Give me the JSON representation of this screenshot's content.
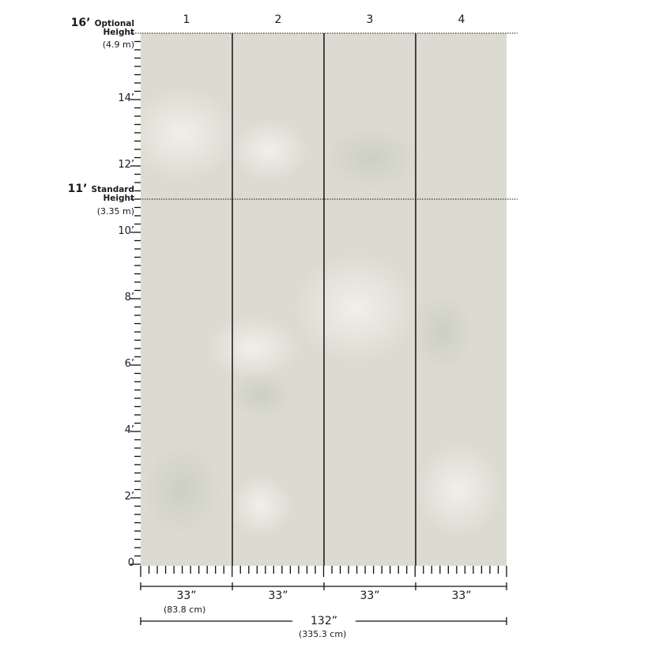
{
  "panels": [
    "1",
    "2",
    "3",
    "4"
  ],
  "optional_height": {
    "value": "16’",
    "label1": "Optional",
    "label2": "Height",
    "metric": "(4.9 m)"
  },
  "standard_height": {
    "value": "11’",
    "label1": "Standard",
    "label2": "Height",
    "metric": "(3.35 m)"
  },
  "height_ticks": [
    "0",
    "2’",
    "4’",
    "6’",
    "8’",
    "10’",
    "12’",
    "14’"
  ],
  "panel_widths": [
    "33”",
    "33”",
    "33”",
    "33”"
  ],
  "panel_width_metric": "(83.8 cm)",
  "total_width": "132”",
  "total_width_metric": "(335.3 cm)",
  "colors": {
    "mural": "#dcdbd2",
    "lines": "#111111",
    "accent": "#efd9c6"
  }
}
